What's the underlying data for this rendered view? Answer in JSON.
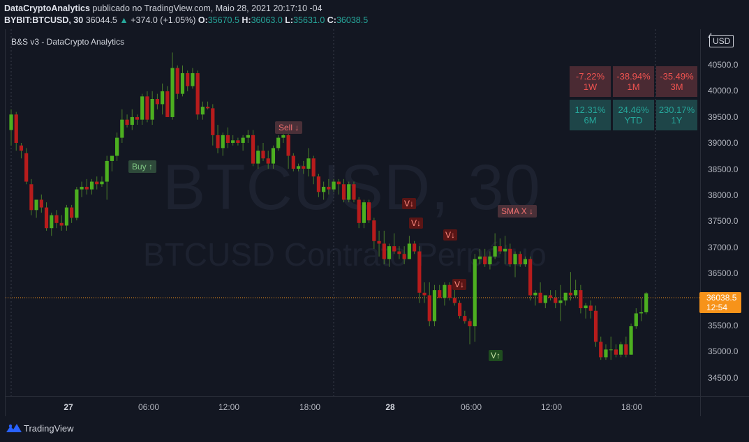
{
  "header": {
    "author": "DataCryptoAnalytics",
    "published_text": " publicado no TradingView.com, Maio 28, 2021 20:17:10 -04",
    "symbol": "BYBIT:BTCUSD, 30",
    "last": "36044.5",
    "change_arrow": "▲",
    "change": "+374.0 (+1.05%)",
    "o_label": "O:",
    "o_value": "35670.5",
    "h_label": "H:",
    "h_value": "36063.0",
    "l_label": "L:",
    "l_value": "35631.0",
    "c_label": "C:",
    "c_value": "36038.5"
  },
  "indicator_label": "B&S v3 - DataCrypto Analytics",
  "watermark": {
    "symbol": "BTCUSD, 30",
    "description": "BTCUSD Contrato Perpétuo"
  },
  "currency_button": "USD",
  "last_price_tag": {
    "price": "36038.5",
    "countdown": "12:54"
  },
  "performance": [
    {
      "value": "-7.22%",
      "period": "1W",
      "sign": "neg"
    },
    {
      "value": "-38.94%",
      "period": "1M",
      "sign": "neg"
    },
    {
      "value": "-35.49%",
      "period": "3M",
      "sign": "neg"
    },
    {
      "value": "12.31%",
      "period": "6M",
      "sign": "pos"
    },
    {
      "value": "24.46%",
      "period": "YTD",
      "sign": "pos"
    },
    {
      "value": "230.17%",
      "period": "1Y",
      "sign": "pos"
    }
  ],
  "signals": {
    "buy": "Buy ↑",
    "sell": "Sell ↓",
    "v1": "V↓",
    "v2": "V↓",
    "v3": "V↓",
    "v4": "V↓",
    "v_up": "V↑",
    "sma_x": "SMA X ↓"
  },
  "colors": {
    "background": "#131722",
    "bull_green": "#4caf20",
    "bear_red": "#b71c1c",
    "wick": "#4a7c2a",
    "price_tag": "#f7931a"
  },
  "icons": {
    "logo": "tradingview-logo-icon"
  },
  "footer": {
    "brand": "TradingView"
  },
  "chart_data": {
    "type": "candlestick",
    "title": "BTCUSD, 30",
    "y_ticks": [
      "40500.0",
      "40000.0",
      "39500.0",
      "39000.0",
      "38500.0",
      "38000.0",
      "37500.0",
      "37000.0",
      "36500.0",
      "35500.0",
      "35000.0",
      "34500.0"
    ],
    "x_ticks": [
      "27",
      "06:00",
      "12:00",
      "18:00",
      "28",
      "06:00",
      "12:00",
      "18:00"
    ],
    "ylim": [
      34050,
      41150
    ],
    "candles": [
      {
        "o": 39200,
        "h": 39600,
        "l": 38900,
        "c": 39500
      },
      {
        "o": 39500,
        "h": 39550,
        "l": 38800,
        "c": 38950
      },
      {
        "o": 38900,
        "h": 38950,
        "l": 38650,
        "c": 38800
      },
      {
        "o": 38750,
        "h": 38850,
        "l": 38150,
        "c": 38200
      },
      {
        "o": 38150,
        "h": 38250,
        "l": 37550,
        "c": 37650
      },
      {
        "o": 37650,
        "h": 37850,
        "l": 37500,
        "c": 37850
      },
      {
        "o": 37850,
        "h": 37950,
        "l": 37600,
        "c": 37700
      },
      {
        "o": 37700,
        "h": 37800,
        "l": 37250,
        "c": 37300
      },
      {
        "o": 37300,
        "h": 37600,
        "l": 37150,
        "c": 37550
      },
      {
        "o": 37550,
        "h": 37650,
        "l": 37300,
        "c": 37400
      },
      {
        "o": 37400,
        "h": 37550,
        "l": 37250,
        "c": 37350
      },
      {
        "o": 37350,
        "h": 37750,
        "l": 37250,
        "c": 37700
      },
      {
        "o": 37700,
        "h": 37750,
        "l": 37400,
        "c": 37500
      },
      {
        "o": 37500,
        "h": 38100,
        "l": 37450,
        "c": 38050
      },
      {
        "o": 38050,
        "h": 38200,
        "l": 37900,
        "c": 38100
      },
      {
        "o": 38100,
        "h": 38250,
        "l": 37950,
        "c": 38050
      },
      {
        "o": 38050,
        "h": 38250,
        "l": 37950,
        "c": 38200
      },
      {
        "o": 38200,
        "h": 38300,
        "l": 38050,
        "c": 38150
      },
      {
        "o": 38150,
        "h": 38300,
        "l": 38100,
        "c": 38200
      },
      {
        "o": 38200,
        "h": 38700,
        "l": 37850,
        "c": 38600
      },
      {
        "o": 38600,
        "h": 38700,
        "l": 38400,
        "c": 38700
      },
      {
        "o": 38700,
        "h": 39150,
        "l": 38600,
        "c": 39050
      },
      {
        "o": 39050,
        "h": 39600,
        "l": 38950,
        "c": 39400
      },
      {
        "o": 39400,
        "h": 39500,
        "l": 39250,
        "c": 39300
      },
      {
        "o": 39300,
        "h": 39600,
        "l": 39200,
        "c": 39450
      },
      {
        "o": 39450,
        "h": 39500,
        "l": 39300,
        "c": 39400
      },
      {
        "o": 39400,
        "h": 39900,
        "l": 39300,
        "c": 39850
      },
      {
        "o": 39850,
        "h": 39950,
        "l": 39350,
        "c": 39400
      },
      {
        "o": 39400,
        "h": 39950,
        "l": 39300,
        "c": 39800
      },
      {
        "o": 39800,
        "h": 39900,
        "l": 39600,
        "c": 39700
      },
      {
        "o": 39700,
        "h": 40100,
        "l": 39500,
        "c": 39950
      },
      {
        "o": 39950,
        "h": 40050,
        "l": 39450,
        "c": 39450
      },
      {
        "o": 39450,
        "h": 40700,
        "l": 39400,
        "c": 40400
      },
      {
        "o": 40400,
        "h": 40450,
        "l": 39800,
        "c": 39900
      },
      {
        "o": 39900,
        "h": 40450,
        "l": 39850,
        "c": 40300
      },
      {
        "o": 40300,
        "h": 40350,
        "l": 39950,
        "c": 40050
      },
      {
        "o": 40050,
        "h": 40400,
        "l": 40000,
        "c": 40300
      },
      {
        "o": 40300,
        "h": 40350,
        "l": 39400,
        "c": 39500
      },
      {
        "o": 39500,
        "h": 39750,
        "l": 39400,
        "c": 39650
      },
      {
        "o": 39650,
        "h": 39750,
        "l": 39600,
        "c": 39620
      },
      {
        "o": 39620,
        "h": 39700,
        "l": 38900,
        "c": 39100
      },
      {
        "o": 39100,
        "h": 39300,
        "l": 38750,
        "c": 38850
      },
      {
        "o": 38850,
        "h": 39150,
        "l": 38700,
        "c": 39100
      },
      {
        "o": 39100,
        "h": 39250,
        "l": 38850,
        "c": 38950
      },
      {
        "o": 38950,
        "h": 39100,
        "l": 38900,
        "c": 39000
      },
      {
        "o": 39000,
        "h": 39050,
        "l": 38900,
        "c": 38950
      },
      {
        "o": 38950,
        "h": 39100,
        "l": 38800,
        "c": 39050
      },
      {
        "o": 39050,
        "h": 39200,
        "l": 38950,
        "c": 39100
      },
      {
        "o": 39100,
        "h": 39200,
        "l": 38500,
        "c": 38550
      },
      {
        "o": 38550,
        "h": 38900,
        "l": 38450,
        "c": 38800
      },
      {
        "o": 38800,
        "h": 38950,
        "l": 38600,
        "c": 38650
      },
      {
        "o": 38650,
        "h": 38800,
        "l": 38450,
        "c": 38550
      },
      {
        "o": 38550,
        "h": 38900,
        "l": 38450,
        "c": 38850
      },
      {
        "o": 38850,
        "h": 39100,
        "l": 38800,
        "c": 39050
      },
      {
        "o": 39050,
        "h": 39200,
        "l": 38950,
        "c": 39100
      },
      {
        "o": 39100,
        "h": 39150,
        "l": 38450,
        "c": 38700
      },
      {
        "o": 38700,
        "h": 38750,
        "l": 38400,
        "c": 38450
      },
      {
        "o": 38450,
        "h": 38550,
        "l": 38400,
        "c": 38500
      },
      {
        "o": 38500,
        "h": 38600,
        "l": 38350,
        "c": 38450
      },
      {
        "o": 38450,
        "h": 38850,
        "l": 38300,
        "c": 38650
      },
      {
        "o": 38650,
        "h": 38700,
        "l": 38150,
        "c": 38300
      },
      {
        "o": 38300,
        "h": 38350,
        "l": 37900,
        "c": 38000
      },
      {
        "o": 38000,
        "h": 38200,
        "l": 37850,
        "c": 38100
      },
      {
        "o": 38100,
        "h": 38250,
        "l": 37950,
        "c": 38050
      },
      {
        "o": 38050,
        "h": 38250,
        "l": 38000,
        "c": 38200
      },
      {
        "o": 38200,
        "h": 38250,
        "l": 37950,
        "c": 38150
      },
      {
        "o": 38150,
        "h": 38250,
        "l": 37800,
        "c": 37850
      },
      {
        "o": 37850,
        "h": 38200,
        "l": 37800,
        "c": 38150
      },
      {
        "o": 38150,
        "h": 38200,
        "l": 37800,
        "c": 37850
      },
      {
        "o": 37850,
        "h": 37900,
        "l": 37300,
        "c": 37400
      },
      {
        "o": 37400,
        "h": 37850,
        "l": 37300,
        "c": 37800
      },
      {
        "o": 37800,
        "h": 37850,
        "l": 37400,
        "c": 37450
      },
      {
        "o": 37450,
        "h": 37500,
        "l": 36900,
        "c": 37050
      },
      {
        "o": 37050,
        "h": 37250,
        "l": 36750,
        "c": 37000
      },
      {
        "o": 37000,
        "h": 37250,
        "l": 36600,
        "c": 36700
      },
      {
        "o": 36700,
        "h": 37000,
        "l": 36550,
        "c": 36950
      },
      {
        "o": 36950,
        "h": 37200,
        "l": 36800,
        "c": 36850
      },
      {
        "o": 36850,
        "h": 36950,
        "l": 36700,
        "c": 36800
      },
      {
        "o": 36800,
        "h": 36950,
        "l": 36600,
        "c": 36700
      },
      {
        "o": 36700,
        "h": 37150,
        "l": 36700,
        "c": 37000
      },
      {
        "o": 37000,
        "h": 37050,
        "l": 36800,
        "c": 36850
      },
      {
        "o": 36850,
        "h": 36950,
        "l": 35850,
        "c": 36050
      },
      {
        "o": 36050,
        "h": 36250,
        "l": 35850,
        "c": 36000
      },
      {
        "o": 36000,
        "h": 36250,
        "l": 35400,
        "c": 35500
      },
      {
        "o": 35500,
        "h": 36200,
        "l": 35400,
        "c": 36100
      },
      {
        "o": 36100,
        "h": 36200,
        "l": 35950,
        "c": 35950
      },
      {
        "o": 35950,
        "h": 36250,
        "l": 35800,
        "c": 36200
      },
      {
        "o": 36200,
        "h": 36250,
        "l": 35900,
        "c": 35950
      },
      {
        "o": 35950,
        "h": 36200,
        "l": 35800,
        "c": 35850
      },
      {
        "o": 35850,
        "h": 35900,
        "l": 35550,
        "c": 35600
      },
      {
        "o": 35600,
        "h": 35700,
        "l": 35450,
        "c": 35500
      },
      {
        "o": 35500,
        "h": 35550,
        "l": 35050,
        "c": 35400
      },
      {
        "o": 35400,
        "h": 36800,
        "l": 35100,
        "c": 36700
      },
      {
        "o": 36700,
        "h": 36900,
        "l": 36600,
        "c": 36750
      },
      {
        "o": 36750,
        "h": 36900,
        "l": 36550,
        "c": 36600
      },
      {
        "o": 36600,
        "h": 36850,
        "l": 36500,
        "c": 36750
      },
      {
        "o": 36750,
        "h": 37200,
        "l": 36700,
        "c": 36950
      },
      {
        "o": 36950,
        "h": 37100,
        "l": 36800,
        "c": 36850
      },
      {
        "o": 36850,
        "h": 37150,
        "l": 36600,
        "c": 36900
      },
      {
        "o": 36900,
        "h": 37000,
        "l": 36550,
        "c": 36600
      },
      {
        "o": 36600,
        "h": 36850,
        "l": 36350,
        "c": 36800
      },
      {
        "o": 36800,
        "h": 36850,
        "l": 36550,
        "c": 36600
      },
      {
        "o": 36600,
        "h": 36750,
        "l": 36550,
        "c": 36700
      },
      {
        "o": 36700,
        "h": 36750,
        "l": 35900,
        "c": 36000
      },
      {
        "o": 36000,
        "h": 36100,
        "l": 35800,
        "c": 36050
      },
      {
        "o": 36050,
        "h": 36250,
        "l": 35850,
        "c": 35850
      },
      {
        "o": 35850,
        "h": 36000,
        "l": 35750,
        "c": 36000
      },
      {
        "o": 36000,
        "h": 36100,
        "l": 35900,
        "c": 35950
      },
      {
        "o": 35950,
        "h": 36100,
        "l": 35750,
        "c": 35850
      },
      {
        "o": 35850,
        "h": 36200,
        "l": 35500,
        "c": 35900
      },
      {
        "o": 35900,
        "h": 36050,
        "l": 35800,
        "c": 36050
      },
      {
        "o": 36050,
        "h": 36450,
        "l": 35900,
        "c": 36000
      },
      {
        "o": 36000,
        "h": 36300,
        "l": 35950,
        "c": 36100
      },
      {
        "o": 36100,
        "h": 36200,
        "l": 35650,
        "c": 35750
      },
      {
        "o": 35750,
        "h": 35850,
        "l": 35550,
        "c": 35800
      },
      {
        "o": 35800,
        "h": 35900,
        "l": 35550,
        "c": 35700
      },
      {
        "o": 35700,
        "h": 35800,
        "l": 35000,
        "c": 35100
      },
      {
        "o": 35100,
        "h": 35200,
        "l": 34750,
        "c": 34800
      },
      {
        "o": 34800,
        "h": 35050,
        "l": 34750,
        "c": 34950
      },
      {
        "o": 34950,
        "h": 35200,
        "l": 34750,
        "c": 34950
      },
      {
        "o": 34950,
        "h": 35050,
        "l": 34800,
        "c": 34850
      },
      {
        "o": 34850,
        "h": 35100,
        "l": 34800,
        "c": 35050
      },
      {
        "o": 35050,
        "h": 35200,
        "l": 34800,
        "c": 34850
      },
      {
        "o": 34850,
        "h": 35450,
        "l": 34850,
        "c": 35400
      },
      {
        "o": 35400,
        "h": 35750,
        "l": 35350,
        "c": 35650
      },
      {
        "o": 35650,
        "h": 35950,
        "l": 35500,
        "c": 35670
      },
      {
        "o": 35670,
        "h": 36063,
        "l": 35631,
        "c": 36038
      }
    ]
  }
}
